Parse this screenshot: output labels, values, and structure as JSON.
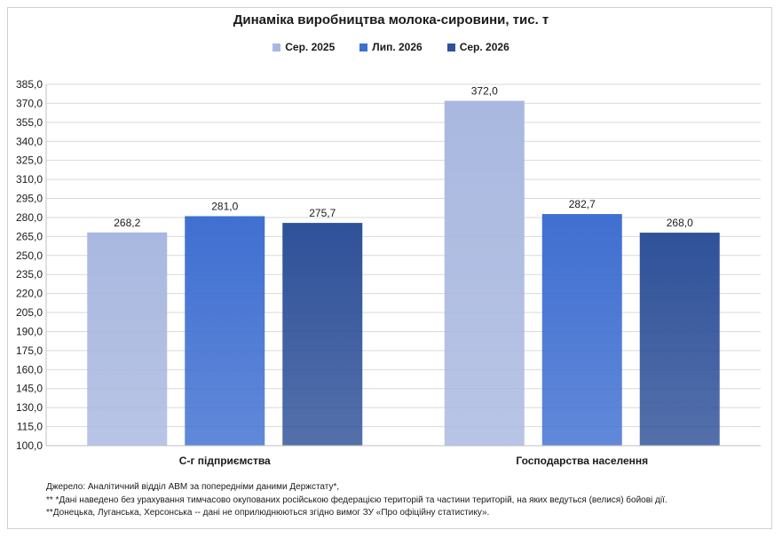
{
  "chart_data": {
    "type": "bar",
    "title": "Динаміка виробництва молока-сировини, тис. т",
    "categories": [
      "С-г підприємства",
      "Господарства населення"
    ],
    "series": [
      {
        "name": "Сер. 2025",
        "values": [
          268.2,
          372.0
        ],
        "labels": [
          "268,2",
          "372,0"
        ],
        "color": "#a9b8e0"
      },
      {
        "name": "Лип. 2026",
        "values": [
          281.0,
          282.7
        ],
        "labels": [
          "281,0",
          "282,7"
        ],
        "color": "#3f6fd1"
      },
      {
        "name": "Сер. 2026",
        "values": [
          275.7,
          268.0
        ],
        "labels": [
          "275,7",
          "268,0"
        ],
        "color": "#2f5199"
      }
    ],
    "ylim": [
      100,
      385
    ],
    "yticks": [
      "100,0",
      "115,0",
      "130,0",
      "145,0",
      "160,0",
      "175,0",
      "190,0",
      "205,0",
      "220,0",
      "235,0",
      "250,0",
      "265,0",
      "280,0",
      "295,0",
      "310,0",
      "325,0",
      "340,0",
      "355,0",
      "370,0",
      "385,0"
    ],
    "grid": true,
    "legend_position": "top"
  },
  "notes": [
    "Джерело:  Аналітичний відділ АВМ за попередніми даними Держстату*,",
    "** *Дані наведено  без урахування тимчасово окупованих російською федерацією територій та частини територій, на яких ведуться  (велися) бойові дії.",
    "**Донецька,  Луганська, Херсонська -- дані не оприлюднюються  згідно вимог ЗУ «Про офіційну статистику»."
  ]
}
